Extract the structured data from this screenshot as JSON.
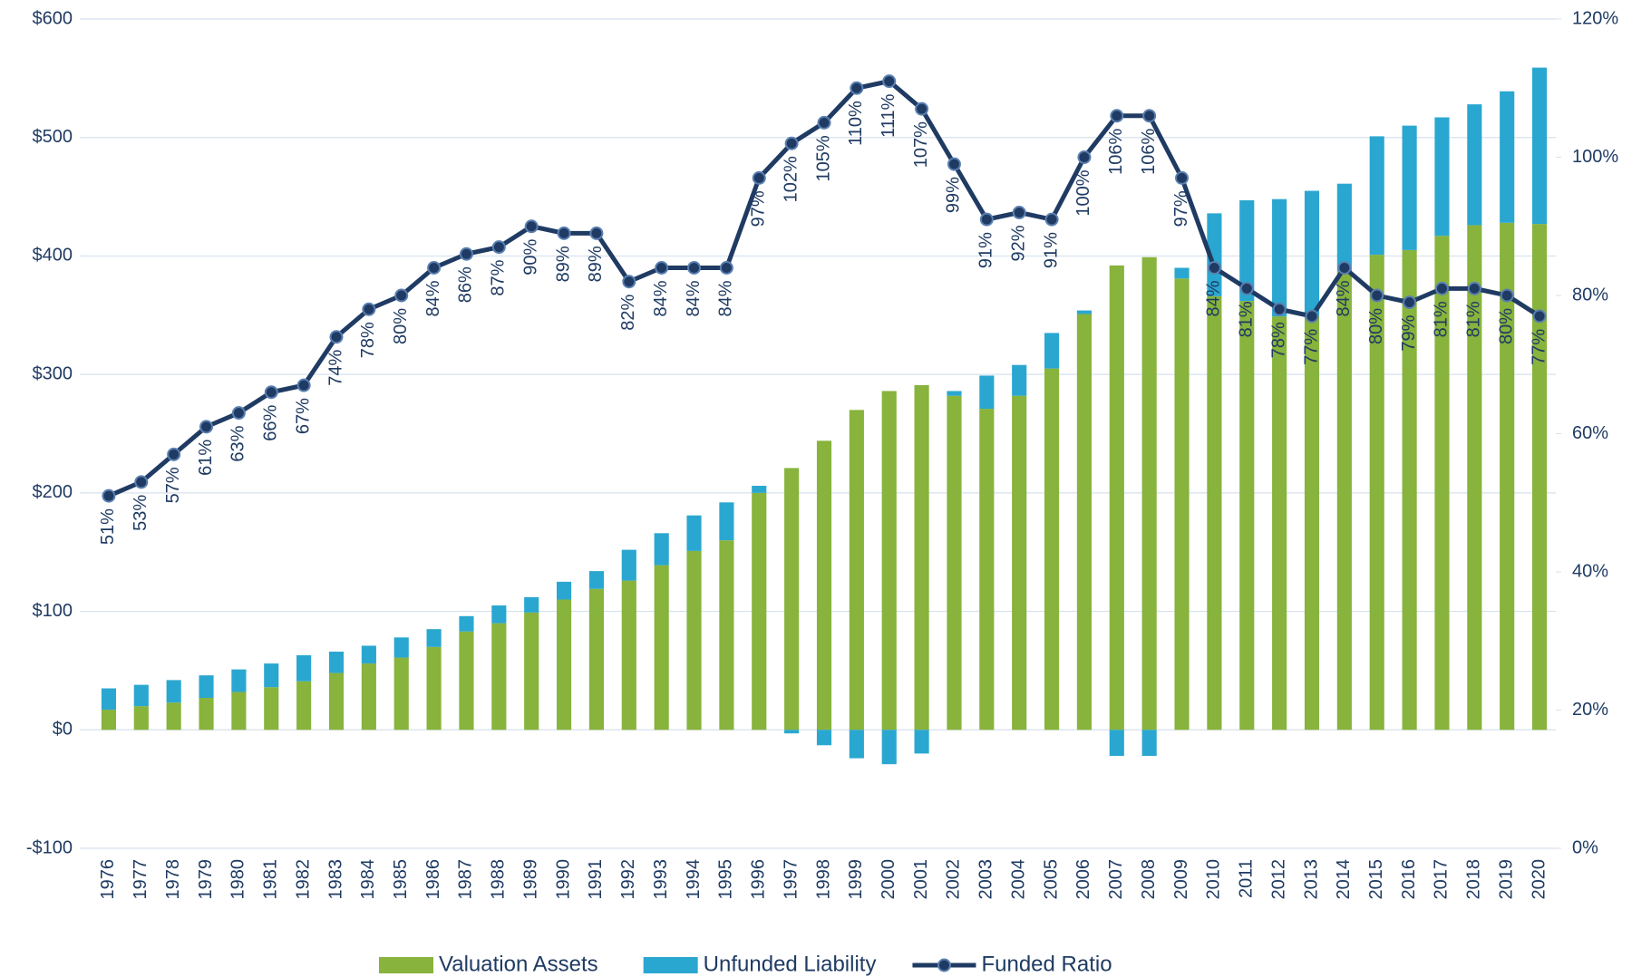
{
  "chart_data": {
    "type": "bar",
    "categories": [
      "1976",
      "1977",
      "1978",
      "1979",
      "1980",
      "1981",
      "1982",
      "1983",
      "1984",
      "1985",
      "1986",
      "1987",
      "1988",
      "1989",
      "1990",
      "1991",
      "1992",
      "1993",
      "1994",
      "1995",
      "1996",
      "1997",
      "1998",
      "1999",
      "2000",
      "2001",
      "2002",
      "2003",
      "2004",
      "2005",
      "2006",
      "2007",
      "2008",
      "2009",
      "2010",
      "2011",
      "2012",
      "2013",
      "2014",
      "2015",
      "2016",
      "2017",
      "2018",
      "2019",
      "2020"
    ],
    "series": [
      {
        "name": "Valuation Assets",
        "type": "bar",
        "color": "#88b33c",
        "values": [
          17,
          20,
          23,
          27,
          32,
          36,
          41,
          48,
          56,
          61,
          70,
          83,
          90,
          99,
          110,
          119,
          126,
          139,
          151,
          160,
          200,
          221,
          244,
          270,
          286,
          291,
          282,
          271,
          282,
          305,
          351,
          392,
          399,
          381,
          366,
          362,
          349,
          350,
          387,
          401,
          405,
          417,
          426,
          428,
          427
        ]
      },
      {
        "name": "Unfunded Liability",
        "type": "bar",
        "color": "#2aa7d0",
        "values": [
          18,
          18,
          19,
          19,
          19,
          20,
          22,
          18,
          15,
          17,
          15,
          13,
          15,
          13,
          15,
          15,
          26,
          27,
          30,
          32,
          6,
          -3,
          -13,
          -24,
          -29,
          -20,
          4,
          28,
          26,
          30,
          3,
          -22,
          -22,
          9,
          70,
          85,
          99,
          105,
          74,
          100,
          105,
          100,
          102,
          111,
          132
        ]
      },
      {
        "name": "Funded Ratio",
        "type": "line",
        "axis": "y2",
        "color": "#1f3b63",
        "values": [
          51,
          53,
          57,
          61,
          63,
          66,
          67,
          74,
          78,
          80,
          84,
          86,
          87,
          90,
          89,
          89,
          82,
          84,
          84,
          84,
          97,
          102,
          105,
          110,
          111,
          107,
          99,
          91,
          92,
          91,
          100,
          106,
          106,
          97,
          84,
          81,
          78,
          77,
          84,
          80,
          79,
          81,
          81,
          80,
          77
        ],
        "value_labels": [
          "51%",
          "53%",
          "57%",
          "61%",
          "63%",
          "66%",
          "67%",
          "74%",
          "78%",
          "80%",
          "84%",
          "86%",
          "87%",
          "90%",
          "89%",
          "89%",
          "82%",
          "84%",
          "84%",
          "84%",
          "97%",
          "102%",
          "105%",
          "110%",
          "111%",
          "107%",
          "99%",
          "91%",
          "92%",
          "91%",
          "100%",
          "106%",
          "106%",
          "97%",
          "84%",
          "81%",
          "78%",
          "77%",
          "84%",
          "80%",
          "79%",
          "81%",
          "81%",
          "80%",
          "77%"
        ]
      }
    ],
    "ylim": [
      -100,
      600
    ],
    "yticks": [
      {
        "value": -100,
        "label": "-$100"
      },
      {
        "value": 0,
        "label": "$0"
      },
      {
        "value": 100,
        "label": "$100"
      },
      {
        "value": 200,
        "label": "$200"
      },
      {
        "value": 300,
        "label": "$300"
      },
      {
        "value": 400,
        "label": "$400"
      },
      {
        "value": 500,
        "label": "$500"
      },
      {
        "value": 600,
        "label": "$600"
      }
    ],
    "y2lim": [
      0,
      120
    ],
    "y2ticks": [
      {
        "value": 0,
        "label": "0%"
      },
      {
        "value": 20,
        "label": "20%"
      },
      {
        "value": 40,
        "label": "40%"
      },
      {
        "value": 60,
        "label": "60%"
      },
      {
        "value": 80,
        "label": "80%"
      },
      {
        "value": 100,
        "label": "100%"
      },
      {
        "value": 120,
        "label": "120%"
      }
    ],
    "grid": true,
    "legend": "bottom"
  }
}
